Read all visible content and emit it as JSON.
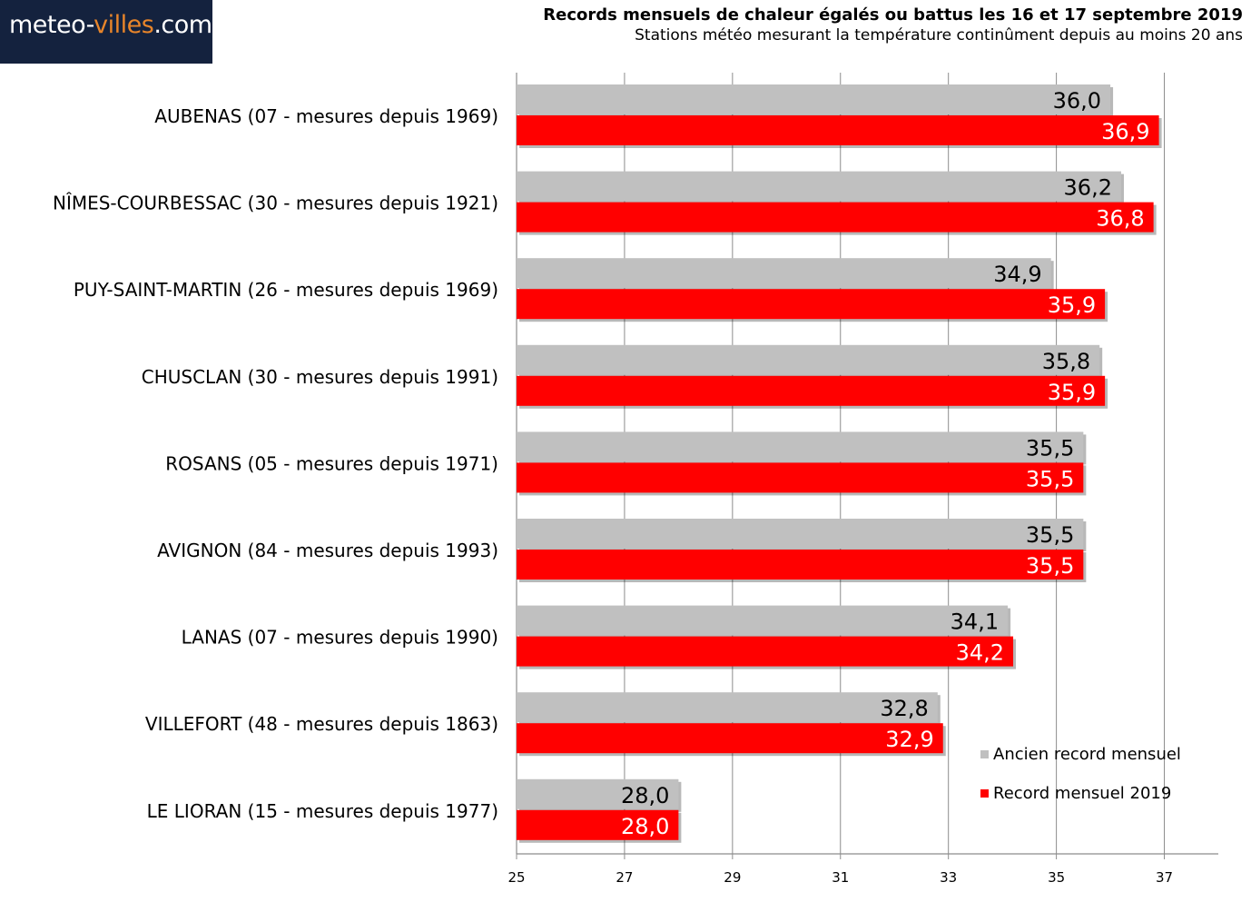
{
  "logo": {
    "part1": "meteo-",
    "part2": "villes",
    "part3": ".com"
  },
  "title": "Records mensuels de chaleur égalés ou battus les 16 et 17 septembre 2019",
  "subtitle": "Stations météo mesurant la température continûment depuis au moins 20 ans",
  "chart_data": {
    "type": "bar",
    "orientation": "horizontal",
    "title": "Records mensuels de chaleur égalés ou battus les 16 et 17 septembre 2019",
    "xlim": [
      25,
      38
    ],
    "xticks": [
      25,
      27,
      29,
      31,
      33,
      35,
      37
    ],
    "grid": true,
    "legend_position": "bottom-right",
    "categories": [
      "AUBENAS (07 - mesures depuis 1969)",
      "NÎMES-COURBESSAC (30 - mesures depuis 1921)",
      "PUY-SAINT-MARTIN (26 - mesures depuis 1969)",
      "CHUSCLAN (30 - mesures depuis 1991)",
      "ROSANS (05 - mesures depuis 1971)",
      "AVIGNON (84 - mesures depuis 1993)",
      "LANAS (07 - mesures depuis 1990)",
      "VILLEFORT (48 - mesures depuis 1863)",
      "LE LIORAN (15 - mesures depuis 1977)"
    ],
    "series": [
      {
        "name": "Ancien record mensuel",
        "color": "#c0c0c0",
        "label_color": "#000000",
        "values": [
          36.0,
          36.2,
          34.9,
          35.8,
          35.5,
          35.5,
          34.1,
          32.8,
          28.0
        ],
        "labels": [
          "36,0",
          "36,2",
          "34,9",
          "35,8",
          "35,5",
          "35,5",
          "34,1",
          "32,8",
          "28,0"
        ]
      },
      {
        "name": "Record mensuel 2019",
        "color": "#ff0000",
        "label_color": "#ffffff",
        "values": [
          36.9,
          36.8,
          35.9,
          35.9,
          35.5,
          35.5,
          34.2,
          32.9,
          28.0
        ],
        "labels": [
          "36,9",
          "36,8",
          "35,9",
          "35,9",
          "35,5",
          "35,5",
          "34,2",
          "32,9",
          "28,0"
        ]
      }
    ]
  }
}
